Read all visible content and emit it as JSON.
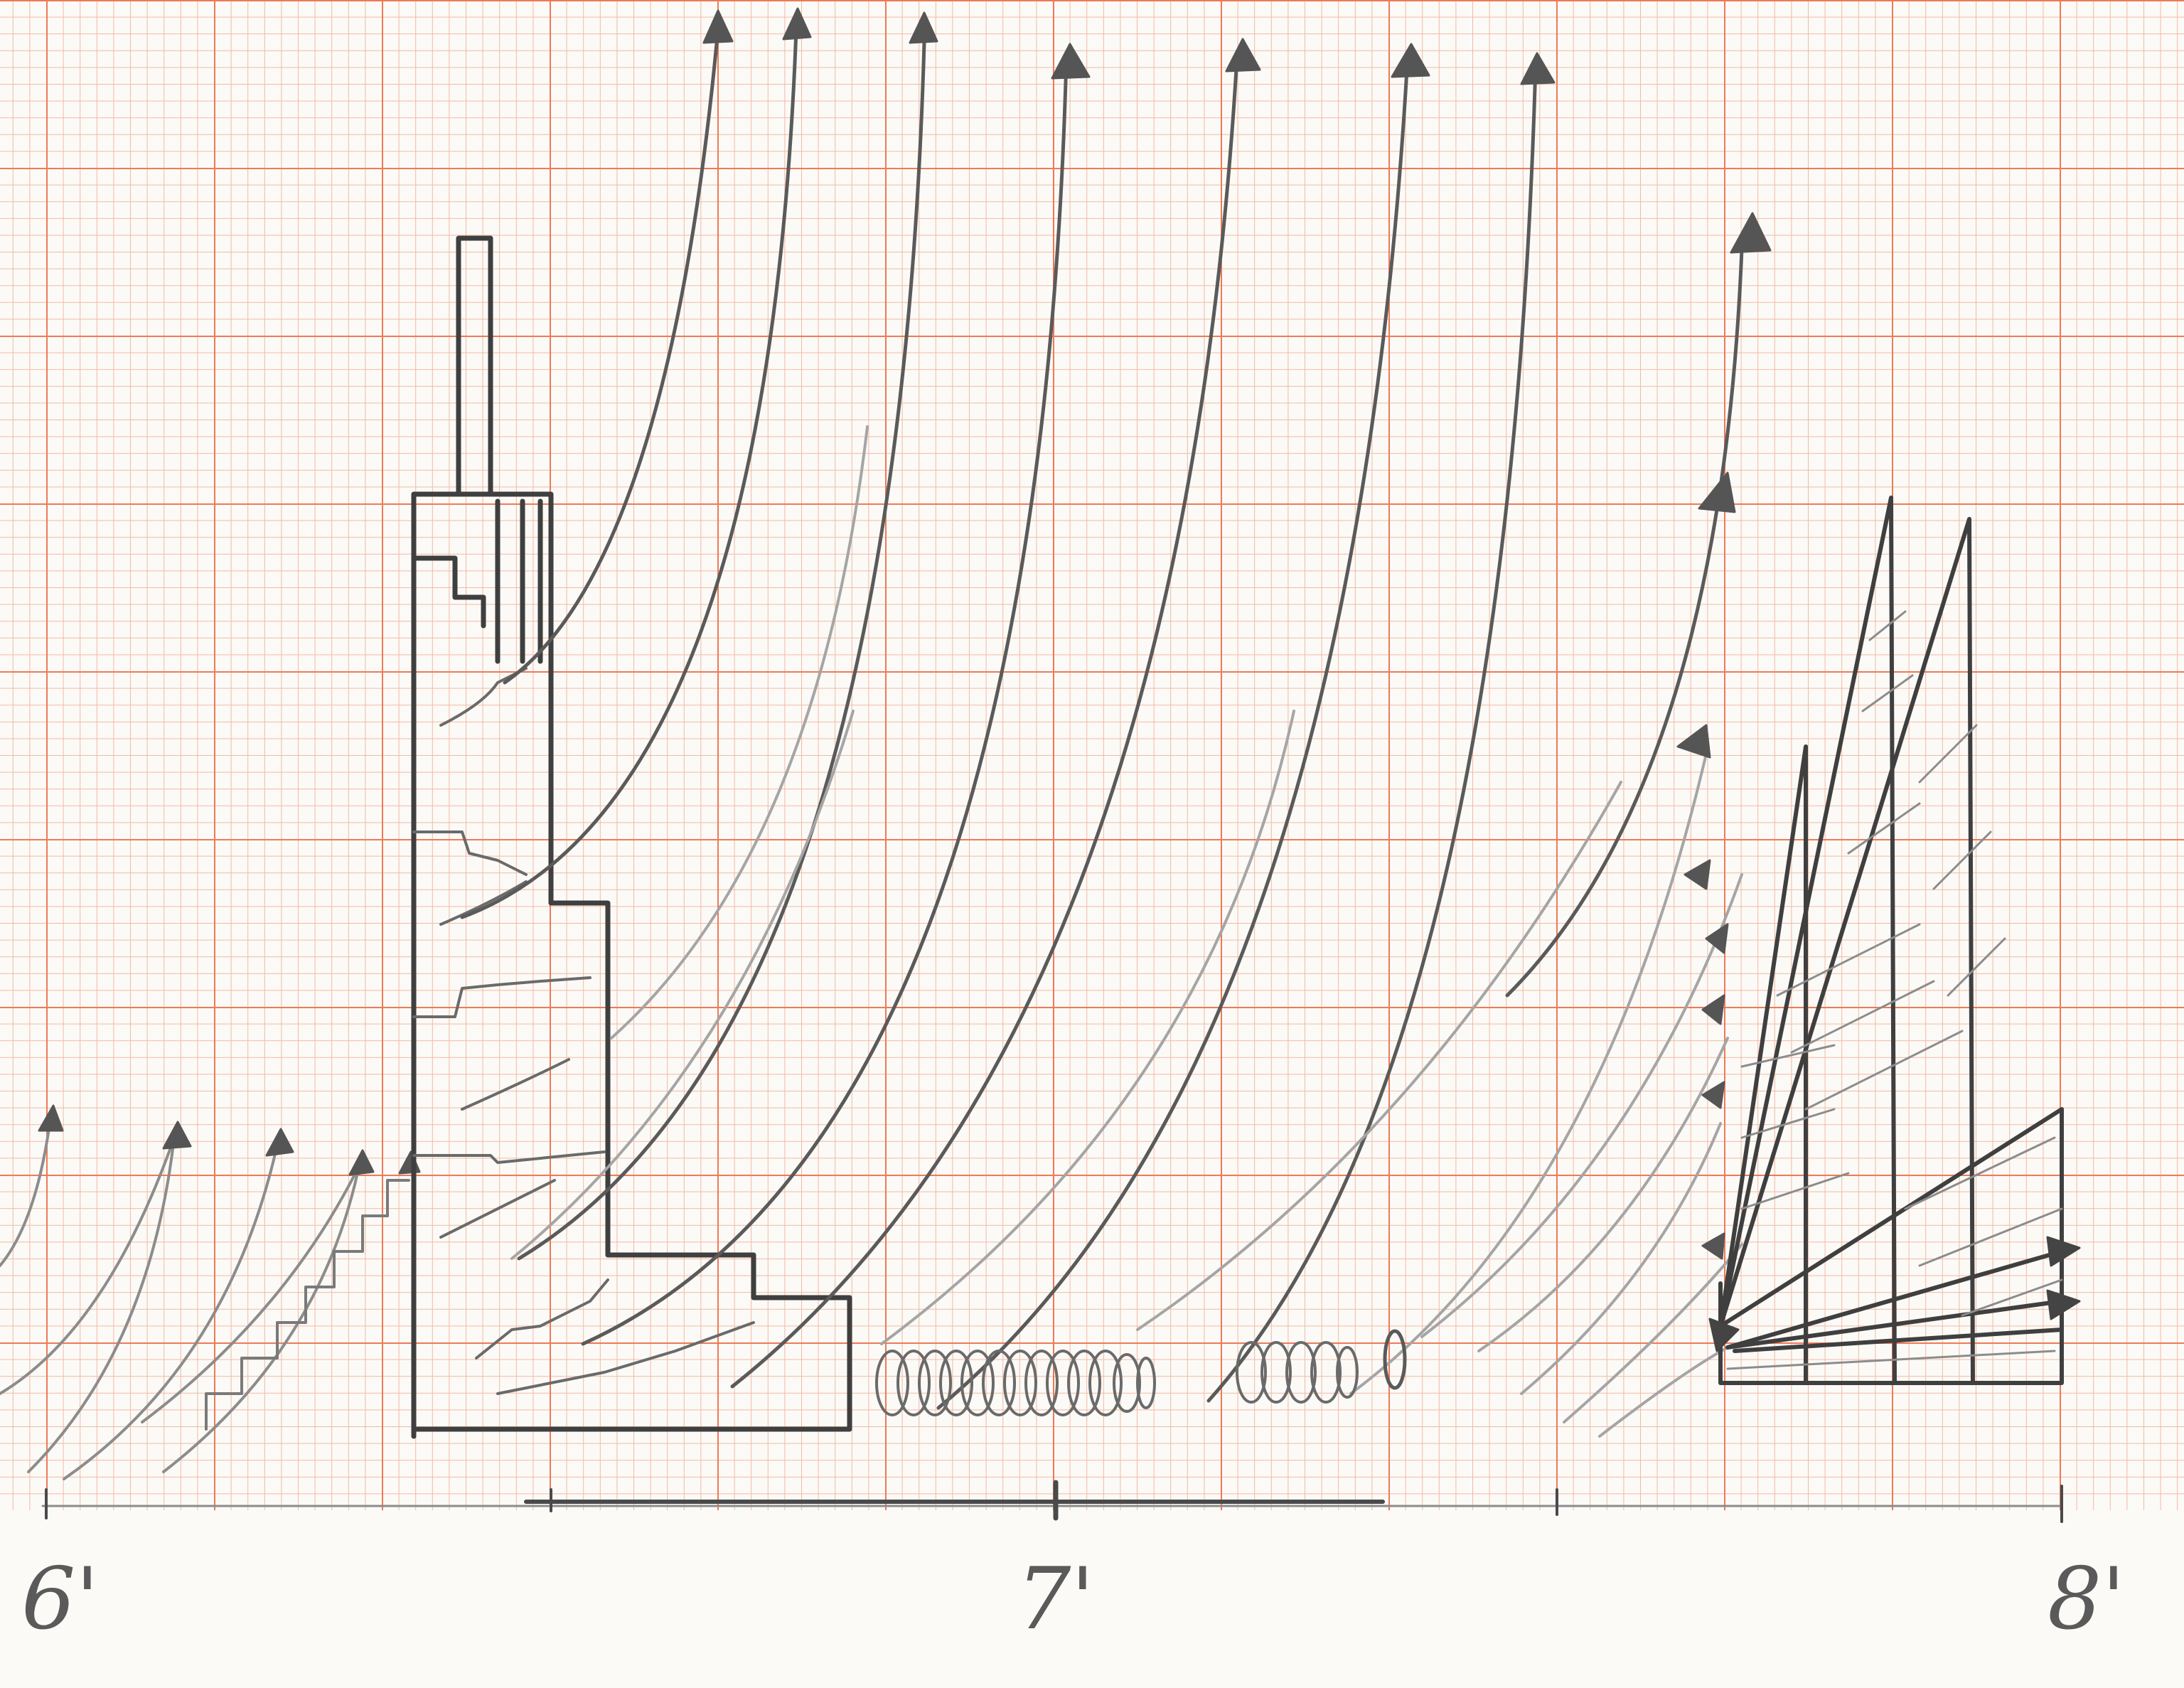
{
  "scale": {
    "labels": [
      "6'",
      "7'",
      "8'"
    ]
  },
  "colors": {
    "paper": "#fbfaf7",
    "grid_minor": "#f2b9a2",
    "grid_major": "#ee7a56",
    "pencil": "#4a4a4a",
    "pencil_light": "#8c8c8c"
  },
  "icons": {
    "arrowhead": "triangle-arrowhead-icon",
    "coil": "coil-icon"
  }
}
